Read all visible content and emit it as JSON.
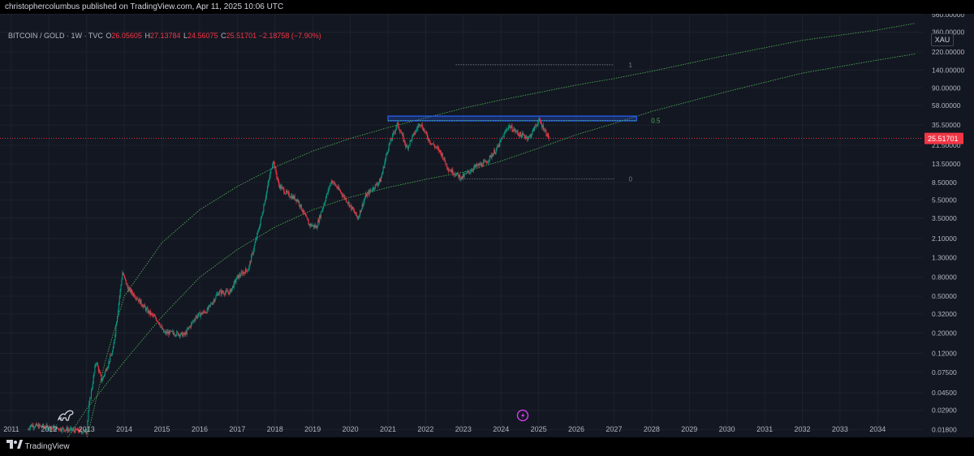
{
  "header": {
    "publisher_text": "christophercolumbus published on TradingView.com, Apr 11, 2025 10:06 UTC"
  },
  "legend": {
    "symbol_text": "BITCOIN / GOLD · 1W · TVC",
    "open_key": "O",
    "open_value": "26.05605",
    "high_key": "H",
    "high_value": "27.13784",
    "low_key": "L",
    "low_value": "24.56075",
    "close_key": "C",
    "close_value": "25.51701",
    "change_value": "−2.18758 (−7.90%)"
  },
  "currency_label": "XAU",
  "footer": {
    "brand": "TradingView"
  },
  "chart_data": {
    "type": "candlestick",
    "title": "BITCOIN / GOLD · 1W · TVC",
    "y_scale": "log",
    "ylim": [
      0.0148,
      570
    ],
    "xlim": [
      2010.7,
      2035.2
    ],
    "y_ticks": [
      "560.00000",
      "360.00000",
      "220.00000",
      "140.00000",
      "90.00000",
      "58.00000",
      "35.50000",
      "21.50000",
      "13.50000",
      "8.50000",
      "5.50000",
      "3.50000",
      "2.10000",
      "1.30000",
      "0.80000",
      "0.50000",
      "0.32000",
      "0.20000",
      "0.12000",
      "0.07500",
      "0.04500",
      "0.02900",
      "0.01800"
    ],
    "x_ticks": [
      "2011",
      "2012",
      "2013",
      "2014",
      "2015",
      "2016",
      "2017",
      "2018",
      "2019",
      "2020",
      "2021",
      "2022",
      "2023",
      "2024",
      "2025",
      "2026",
      "2027",
      "2028",
      "2029",
      "2030",
      "2031",
      "2032",
      "2033",
      "2034"
    ],
    "last_price": "25.51701",
    "price_path": [
      [
        2011.45,
        0.018
      ],
      [
        2011.5,
        0.02
      ],
      [
        2013.0,
        0.017
      ],
      [
        2013.05,
        0.03
      ],
      [
        2013.25,
        0.1
      ],
      [
        2013.4,
        0.06
      ],
      [
        2013.7,
        0.13
      ],
      [
        2013.95,
        0.9
      ],
      [
        2014.1,
        0.6
      ],
      [
        2014.3,
        0.5
      ],
      [
        2014.6,
        0.35
      ],
      [
        2014.9,
        0.27
      ],
      [
        2015.05,
        0.2
      ],
      [
        2015.3,
        0.2
      ],
      [
        2015.6,
        0.19
      ],
      [
        2015.9,
        0.3
      ],
      [
        2016.2,
        0.35
      ],
      [
        2016.5,
        0.55
      ],
      [
        2016.8,
        0.55
      ],
      [
        2017.0,
        0.8
      ],
      [
        2017.3,
        1.0
      ],
      [
        2017.6,
        3.0
      ],
      [
        2017.95,
        15.0
      ],
      [
        2018.1,
        8.0
      ],
      [
        2018.3,
        6.5
      ],
      [
        2018.6,
        5.5
      ],
      [
        2018.9,
        3.0
      ],
      [
        2019.1,
        2.8
      ],
      [
        2019.5,
        9.0
      ],
      [
        2019.9,
        5.5
      ],
      [
        2020.2,
        3.5
      ],
      [
        2020.4,
        6.0
      ],
      [
        2020.8,
        9.0
      ],
      [
        2021.0,
        20.0
      ],
      [
        2021.25,
        37.0
      ],
      [
        2021.5,
        20.0
      ],
      [
        2021.85,
        38.0
      ],
      [
        2022.1,
        24.0
      ],
      [
        2022.4,
        18.0
      ],
      [
        2022.6,
        12.0
      ],
      [
        2022.95,
        9.5
      ],
      [
        2023.3,
        12.5
      ],
      [
        2023.6,
        14.0
      ],
      [
        2023.9,
        20.0
      ],
      [
        2024.2,
        35.0
      ],
      [
        2024.5,
        28.0
      ],
      [
        2024.75,
        26.0
      ],
      [
        2025.0,
        40.0
      ],
      [
        2025.15,
        32.0
      ],
      [
        2025.28,
        25.5
      ]
    ],
    "trend_curves": [
      {
        "name": "upper",
        "points": [
          [
            2013.0,
            0.014
          ],
          [
            2013.5,
            0.1
          ],
          [
            2014.0,
            0.5
          ],
          [
            2015.0,
            1.9
          ],
          [
            2016.0,
            4.3
          ],
          [
            2017.0,
            7.7
          ],
          [
            2018.0,
            12.5
          ],
          [
            2019.0,
            18.6
          ],
          [
            2020.0,
            25.5
          ],
          [
            2021.0,
            33.4
          ],
          [
            2022.0,
            42.5
          ],
          [
            2023.0,
            54.2
          ],
          [
            2024.0,
            66.5
          ],
          [
            2025.0,
            80.0
          ],
          [
            2026.0,
            96.6
          ],
          [
            2027.0,
            113.5
          ],
          [
            2028.0,
            136.0
          ],
          [
            2030.0,
            203.0
          ],
          [
            2032.0,
            294.0
          ],
          [
            2034.0,
            380.0
          ],
          [
            2035.0,
            450.0
          ]
        ]
      },
      {
        "name": "lower",
        "points": [
          [
            2012.5,
            0.0148
          ],
          [
            2013.0,
            0.03
          ],
          [
            2014.0,
            0.098
          ],
          [
            2015.0,
            0.3
          ],
          [
            2016.0,
            0.8
          ],
          [
            2017.0,
            1.6
          ],
          [
            2018.0,
            2.8
          ],
          [
            2019.0,
            4.3
          ],
          [
            2020.0,
            5.9
          ],
          [
            2021.0,
            7.5
          ],
          [
            2022.0,
            9.2
          ],
          [
            2023.0,
            11.0
          ],
          [
            2024.0,
            14.5
          ],
          [
            2025.0,
            20.0
          ],
          [
            2026.0,
            28.0
          ],
          [
            2027.0,
            37.0
          ],
          [
            2028.0,
            50.0
          ],
          [
            2030.0,
            82.0
          ],
          [
            2032.0,
            130.0
          ],
          [
            2034.0,
            180.0
          ],
          [
            2035.0,
            210.0
          ]
        ]
      }
    ],
    "fib_levels": [
      {
        "label": "1",
        "value": 160,
        "x_start": 2022.8,
        "x_end": 2027.0,
        "color": "#787b86"
      },
      {
        "label": "0.5",
        "value": 40,
        "x_start": 2021.0,
        "x_end": 2027.6,
        "color": "#4caf50"
      },
      {
        "label": "0",
        "value": 9.3,
        "x_start": 2022.9,
        "x_end": 2027.0,
        "color": "#787b86"
      }
    ],
    "resistance_box": {
      "x_start": 2021.0,
      "x_end": 2027.6,
      "y_low": 39.5,
      "y_high": 44.5,
      "color": "#2962ff"
    },
    "colors": {
      "up": "#089981",
      "down": "#f23645",
      "curve": "#4caf50",
      "background": "#131722"
    }
  }
}
